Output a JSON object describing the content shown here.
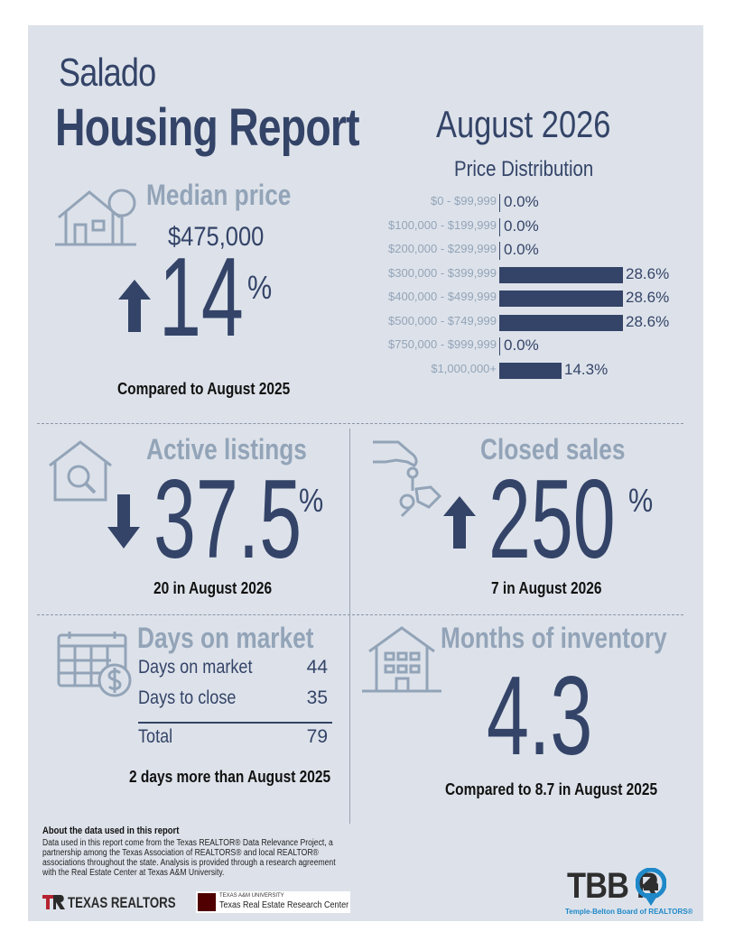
{
  "header": {
    "city": "Salado",
    "title": "Housing Report",
    "period": "August 2026"
  },
  "median_price": {
    "label": "Median price",
    "value": "$475,000",
    "change": "14",
    "percent_sign": "%",
    "direction": "up",
    "comparison": "Compared to August 2025"
  },
  "price_distribution": {
    "title": "Price Distribution",
    "rows": [
      {
        "label": "$0 - $99,999",
        "value_text": "0.0%",
        "value": 0.0
      },
      {
        "label": "$100,000 - $199,999",
        "value_text": "0.0%",
        "value": 0.0
      },
      {
        "label": "$200,000 - $299,999",
        "value_text": "0.0%",
        "value": 0.0
      },
      {
        "label": "$300,000 - $399,999",
        "value_text": "28.6%",
        "value": 28.6
      },
      {
        "label": "$400,000 - $499,999",
        "value_text": "28.6%",
        "value": 28.6
      },
      {
        "label": "$500,000 - $749,999",
        "value_text": "28.6%",
        "value": 28.6
      },
      {
        "label": "$750,000 - $999,999",
        "value_text": "0.0%",
        "value": 0.0
      },
      {
        "label": "$1,000,000+",
        "value_text": "14.3%",
        "value": 14.3
      }
    ]
  },
  "active_listings": {
    "label": "Active listings",
    "change": "37.5",
    "percent_sign": "%",
    "direction": "down",
    "detail": "20 in August 2026"
  },
  "closed_sales": {
    "label": "Closed sales",
    "change": "250",
    "percent_sign": "%",
    "direction": "up",
    "detail": "7 in August 2026"
  },
  "days_on_market": {
    "label": "Days on market",
    "rows": [
      {
        "label": "Days on market",
        "value": "44"
      },
      {
        "label": "Days to close",
        "value": "35"
      }
    ],
    "total_label": "Total",
    "total_value": "79",
    "comparison": "2 days more than August 2025"
  },
  "months_inventory": {
    "label": "Months of inventory",
    "value": "4.3",
    "comparison": "Compared to 8.7 in August 2025"
  },
  "footer": {
    "about_title": "About the data used in this report",
    "about_text": "Data used in this report come from the Texas REALTOR® Data Relevance Project, a partnership among the Texas Association of REALTORS® and local REALTOR® associations throughout the state. Analysis is provided through a research agreement with the Real Estate Center at Texas A&M University.",
    "texas_realtors": "TEXAS REALTORS",
    "tamu_small": "TEXAS A&M UNIVERSITY",
    "tamu_center": "Texas Real Estate Research Center",
    "tbbor_logo": "TBB R",
    "tbbor_name": "Temple-Belton Board of REALTORS®"
  },
  "colors": {
    "navy": "#344468",
    "slate": "#93a4b8",
    "background": "#dde2ea",
    "brand_red": "#b4232f",
    "tbbor_blue": "#1e88c8"
  }
}
